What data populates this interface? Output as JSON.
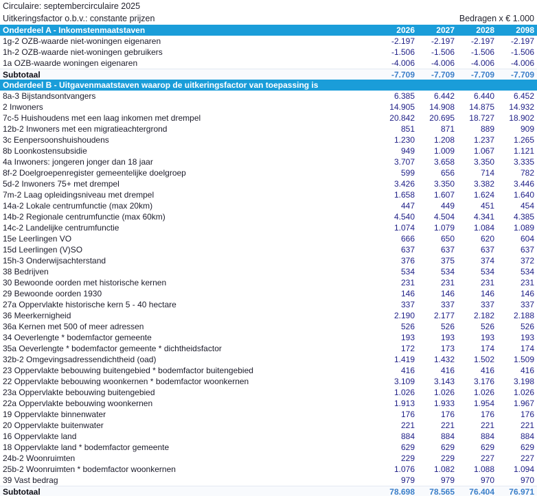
{
  "meta": {
    "title_line1": "Circulaire: septembercirculaire 2025",
    "title_line2": "Uitkeringsfactor o.b.v.: constante prijzen",
    "amounts_note": "Bedragen x € 1.000"
  },
  "colors": {
    "header_band": "#1a9dd9",
    "header_text": "#ffffff",
    "row_value_text": "#1d1d85",
    "subtotal_value_text": "#3b7fc9"
  },
  "years": [
    "2026",
    "2027",
    "2028",
    "2098"
  ],
  "sections": [
    {
      "header": "Onderdeel A - Inkomstenmaatstaven",
      "rows": [
        {
          "label": "1g-2 OZB-waarde niet-woningen eigenaren",
          "values": [
            "-2.197",
            "-2.197",
            "-2.197",
            "-2.197"
          ]
        },
        {
          "label": "1h-2 OZB-waarde niet-woningen gebruikers",
          "values": [
            "-1.506",
            "-1.506",
            "-1.506",
            "-1.506"
          ]
        },
        {
          "label": "1a OZB-waarde woningen eigenaren",
          "values": [
            "-4.006",
            "-4.006",
            "-4.006",
            "-4.006"
          ]
        }
      ],
      "subtotal": {
        "label": "Subtotaal",
        "values": [
          "-7.709",
          "-7.709",
          "-7.709",
          "-7.709"
        ]
      }
    },
    {
      "header": "Onderdeel B - Uitgavenmaatstaven waarop de uitkeringsfactor van toepassing is",
      "rows": [
        {
          "label": "8a-3 Bijstandsontvangers",
          "values": [
            "6.385",
            "6.442",
            "6.440",
            "6.452"
          ]
        },
        {
          "label": "2 Inwoners",
          "values": [
            "14.905",
            "14.908",
            "14.875",
            "14.932"
          ]
        },
        {
          "label": "7c-5 Huishoudens met een laag inkomen met drempel",
          "values": [
            "20.842",
            "20.695",
            "18.727",
            "18.902"
          ]
        },
        {
          "label": "12b-2 Inwoners met een migratieachtergrond",
          "values": [
            "851",
            "871",
            "889",
            "909"
          ]
        },
        {
          "label": "3c Eenpersoonshuishoudens",
          "values": [
            "1.230",
            "1.208",
            "1.237",
            "1.265"
          ]
        },
        {
          "label": "8b Loonkostensubsidie",
          "values": [
            "949",
            "1.009",
            "1.067",
            "1.121"
          ]
        },
        {
          "label": "4a Inwoners: jongeren jonger dan 18 jaar",
          "values": [
            "3.707",
            "3.658",
            "3.350",
            "3.335"
          ]
        },
        {
          "label": "8f-2 Doelgroepenregister gemeentelijke doelgroep",
          "values": [
            "599",
            "656",
            "714",
            "782"
          ]
        },
        {
          "label": "5d-2 Inwoners 75+ met drempel",
          "values": [
            "3.426",
            "3.350",
            "3.382",
            "3.446"
          ]
        },
        {
          "label": "7m-2 Laag opleidingsniveau met drempel",
          "values": [
            "1.658",
            "1.607",
            "1.624",
            "1.640"
          ]
        },
        {
          "label": "14a-2 Lokale centrumfunctie (max 20km)",
          "values": [
            "447",
            "449",
            "451",
            "454"
          ]
        },
        {
          "label": "14b-2 Regionale centrumfunctie (max 60km)",
          "values": [
            "4.540",
            "4.504",
            "4.341",
            "4.385"
          ]
        },
        {
          "label": "14c-2 Landelijke centrumfunctie",
          "values": [
            "1.074",
            "1.079",
            "1.084",
            "1.089"
          ]
        },
        {
          "label": "15e Leerlingen VO",
          "values": [
            "666",
            "650",
            "620",
            "604"
          ]
        },
        {
          "label": "15d Leerlingen (V)SO",
          "values": [
            "637",
            "637",
            "637",
            "637"
          ]
        },
        {
          "label": "15h-3 Onderwijsachterstand",
          "values": [
            "376",
            "375",
            "374",
            "372"
          ]
        },
        {
          "label": "38 Bedrijven",
          "values": [
            "534",
            "534",
            "534",
            "534"
          ]
        },
        {
          "label": "30 Bewoonde oorden met historische kernen",
          "values": [
            "231",
            "231",
            "231",
            "231"
          ]
        },
        {
          "label": "29 Bewoonde oorden 1930",
          "values": [
            "146",
            "146",
            "146",
            "146"
          ]
        },
        {
          "label": "27a Oppervlakte historische kern 5 - 40 hectare",
          "values": [
            "337",
            "337",
            "337",
            "337"
          ]
        },
        {
          "label": "36 Meerkernigheid",
          "values": [
            "2.190",
            "2.177",
            "2.182",
            "2.188"
          ]
        },
        {
          "label": "36a Kernen met 500 of meer adressen",
          "values": [
            "526",
            "526",
            "526",
            "526"
          ]
        },
        {
          "label": "34 Oeverlengte * bodemfactor gemeente",
          "values": [
            "193",
            "193",
            "193",
            "193"
          ]
        },
        {
          "label": "35a Oeverlengte * bodemfactor gemeente * dichtheidsfactor",
          "values": [
            "172",
            "173",
            "174",
            "174"
          ]
        },
        {
          "label": "32b-2 Omgevingsadressendichtheid (oad)",
          "values": [
            "1.419",
            "1.432",
            "1.502",
            "1.509"
          ]
        },
        {
          "label": "23 Oppervlakte bebouwing buitengebied * bodemfactor buitengebied",
          "values": [
            "416",
            "416",
            "416",
            "416"
          ]
        },
        {
          "label": "22 Oppervlakte bebouwing woonkernen * bodemfactor woonkernen",
          "values": [
            "3.109",
            "3.143",
            "3.176",
            "3.198"
          ]
        },
        {
          "label": "23a Oppervlakte bebouwing buitengebied",
          "values": [
            "1.026",
            "1.026",
            "1.026",
            "1.026"
          ]
        },
        {
          "label": "22a Oppervlakte bebouwing woonkernen",
          "values": [
            "1.913",
            "1.933",
            "1.954",
            "1.967"
          ]
        },
        {
          "label": "19 Oppervlakte binnenwater",
          "values": [
            "176",
            "176",
            "176",
            "176"
          ]
        },
        {
          "label": "20 Oppervlakte buitenwater",
          "values": [
            "221",
            "221",
            "221",
            "221"
          ]
        },
        {
          "label": "16 Oppervlakte land",
          "values": [
            "884",
            "884",
            "884",
            "884"
          ]
        },
        {
          "label": "18 Oppervlakte land * bodemfactor gemeente",
          "values": [
            "629",
            "629",
            "629",
            "629"
          ]
        },
        {
          "label": "24b-2 Woonruimten",
          "values": [
            "229",
            "229",
            "227",
            "227"
          ]
        },
        {
          "label": "25b-2 Woonruimten * bodemfactor woonkernen",
          "values": [
            "1.076",
            "1.082",
            "1.088",
            "1.094"
          ]
        },
        {
          "label": "39 Vast bedrag",
          "values": [
            "979",
            "979",
            "970",
            "970"
          ]
        }
      ],
      "subtotal": {
        "label": "Subtotaal",
        "values": [
          "78.698",
          "78.565",
          "76.404",
          "76.971"
        ]
      }
    }
  ]
}
